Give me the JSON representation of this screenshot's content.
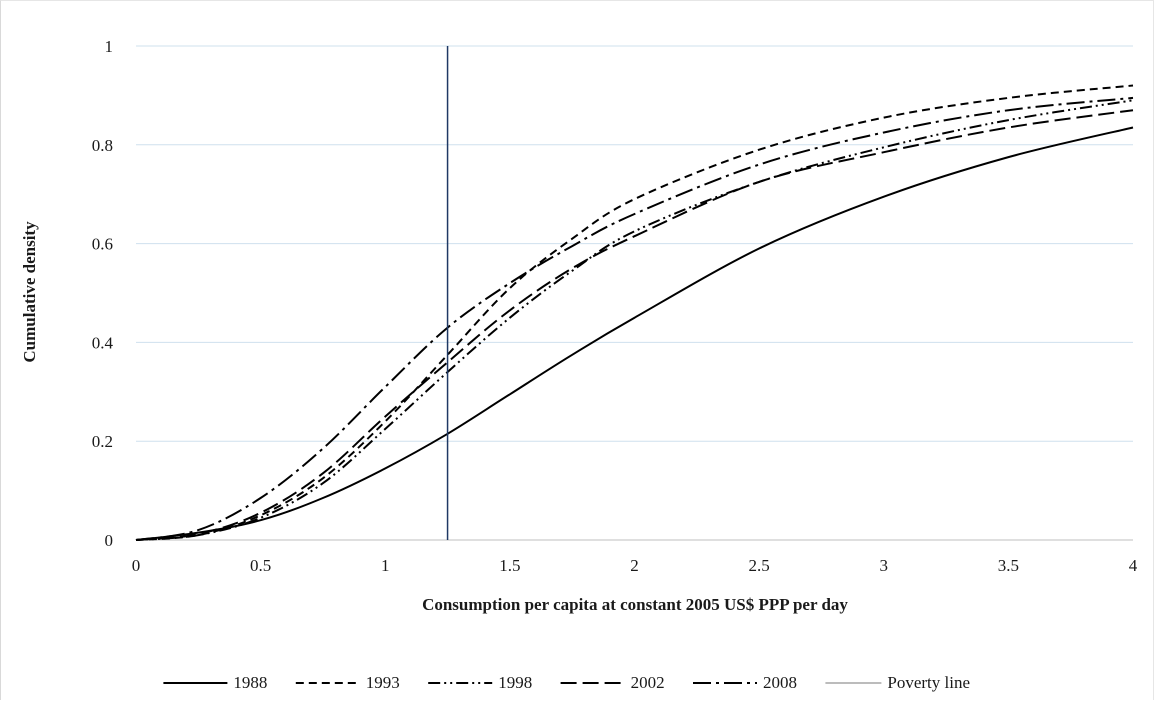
{
  "chart_data": {
    "type": "line",
    "xlabel": "Consumption per capita at constant 2005 US$ PPP per day",
    "ylabel": "Cumulative density",
    "xlim": [
      0,
      4
    ],
    "ylim": [
      0,
      1
    ],
    "x_ticks": [
      "0",
      "0.5",
      "1",
      "1.5",
      "2",
      "2.5",
      "3",
      "3.5",
      "4"
    ],
    "y_ticks": [
      "0",
      "0.2",
      "0.4",
      "0.6",
      "0.8",
      "1"
    ],
    "grid": "horizontal",
    "legend_position": "bottom",
    "x": [
      0,
      0.25,
      0.5,
      0.75,
      1.0,
      1.25,
      1.5,
      1.75,
      2.0,
      2.5,
      3.0,
      3.5,
      4.0
    ],
    "series": [
      {
        "name": "1988",
        "color": "#000000",
        "dash": "solid",
        "values": [
          0,
          0.015,
          0.04,
          0.085,
          0.145,
          0.215,
          0.295,
          0.375,
          0.45,
          0.59,
          0.695,
          0.775,
          0.835
        ]
      },
      {
        "name": "1993",
        "color": "#000000",
        "dash": "dash",
        "values": [
          0,
          0.01,
          0.05,
          0.125,
          0.24,
          0.375,
          0.51,
          0.61,
          0.69,
          0.79,
          0.855,
          0.895,
          0.92
        ]
      },
      {
        "name": "1998",
        "color": "#000000",
        "dash": "dash-dot-dot",
        "values": [
          0,
          0.01,
          0.045,
          0.115,
          0.225,
          0.34,
          0.45,
          0.545,
          0.625,
          0.725,
          0.795,
          0.85,
          0.89
        ]
      },
      {
        "name": "2002",
        "color": "#000000",
        "dash": "long-dash",
        "values": [
          0,
          0.012,
          0.055,
          0.135,
          0.25,
          0.36,
          0.465,
          0.55,
          0.615,
          0.725,
          0.785,
          0.835,
          0.87
        ]
      },
      {
        "name": "2008",
        "color": "#000000",
        "dash": "long-dash-dot",
        "values": [
          0,
          0.02,
          0.085,
          0.185,
          0.31,
          0.43,
          0.52,
          0.595,
          0.66,
          0.76,
          0.825,
          0.87,
          0.895
        ]
      }
    ],
    "poverty_line": {
      "name": "Poverty line",
      "x": 1.25,
      "color": "#1f3864",
      "legend_color": "#a6a6a6"
    }
  }
}
